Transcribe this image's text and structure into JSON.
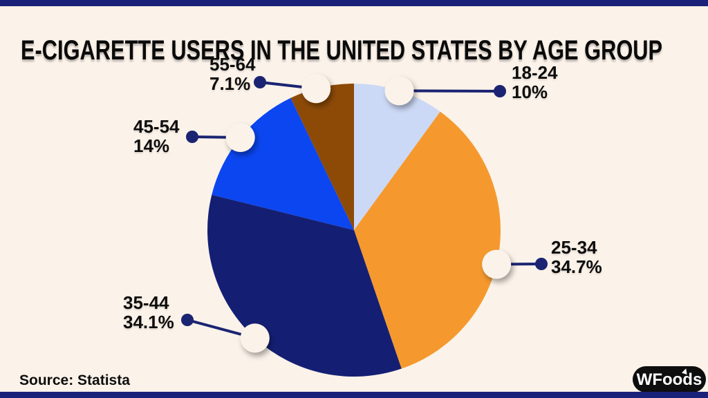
{
  "title": "E-CIGARETTE USERS IN THE UNITED STATES BY AGE GROUP",
  "source": "Source: Statista",
  "brand": {
    "text": "WFoods"
  },
  "colors": {
    "background": "#fbf2e9",
    "border_bar": "#1a2178",
    "connector_line": "#1b2472",
    "connector_dot": "#1b2472",
    "marker_circle": "#fbf3ea",
    "label_text": "#0d0d0d",
    "logo_background": "#0e0e0e",
    "logo_text": "#ffffff"
  },
  "chart_data": {
    "type": "pie",
    "title": "E-CIGARETTE USERS IN THE UNITED STATES BY AGE GROUP",
    "direction": "clockwise",
    "start_angle_deg": 0,
    "legend_position": "callout-labels",
    "slices": [
      {
        "label": "18-24",
        "value": 10,
        "display": "10%",
        "color": "#ccd9f6"
      },
      {
        "label": "25-34",
        "value": 34.7,
        "display": "34.7%",
        "color": "#f5992e"
      },
      {
        "label": "35-44",
        "value": 34.1,
        "display": "34.1%",
        "color": "#141f73"
      },
      {
        "label": "45-54",
        "value": 14,
        "display": "14%",
        "color": "#0b46f0"
      },
      {
        "label": "55-64",
        "value": 7.1,
        "display": "7.1%",
        "color": "#8d4a07"
      }
    ]
  }
}
